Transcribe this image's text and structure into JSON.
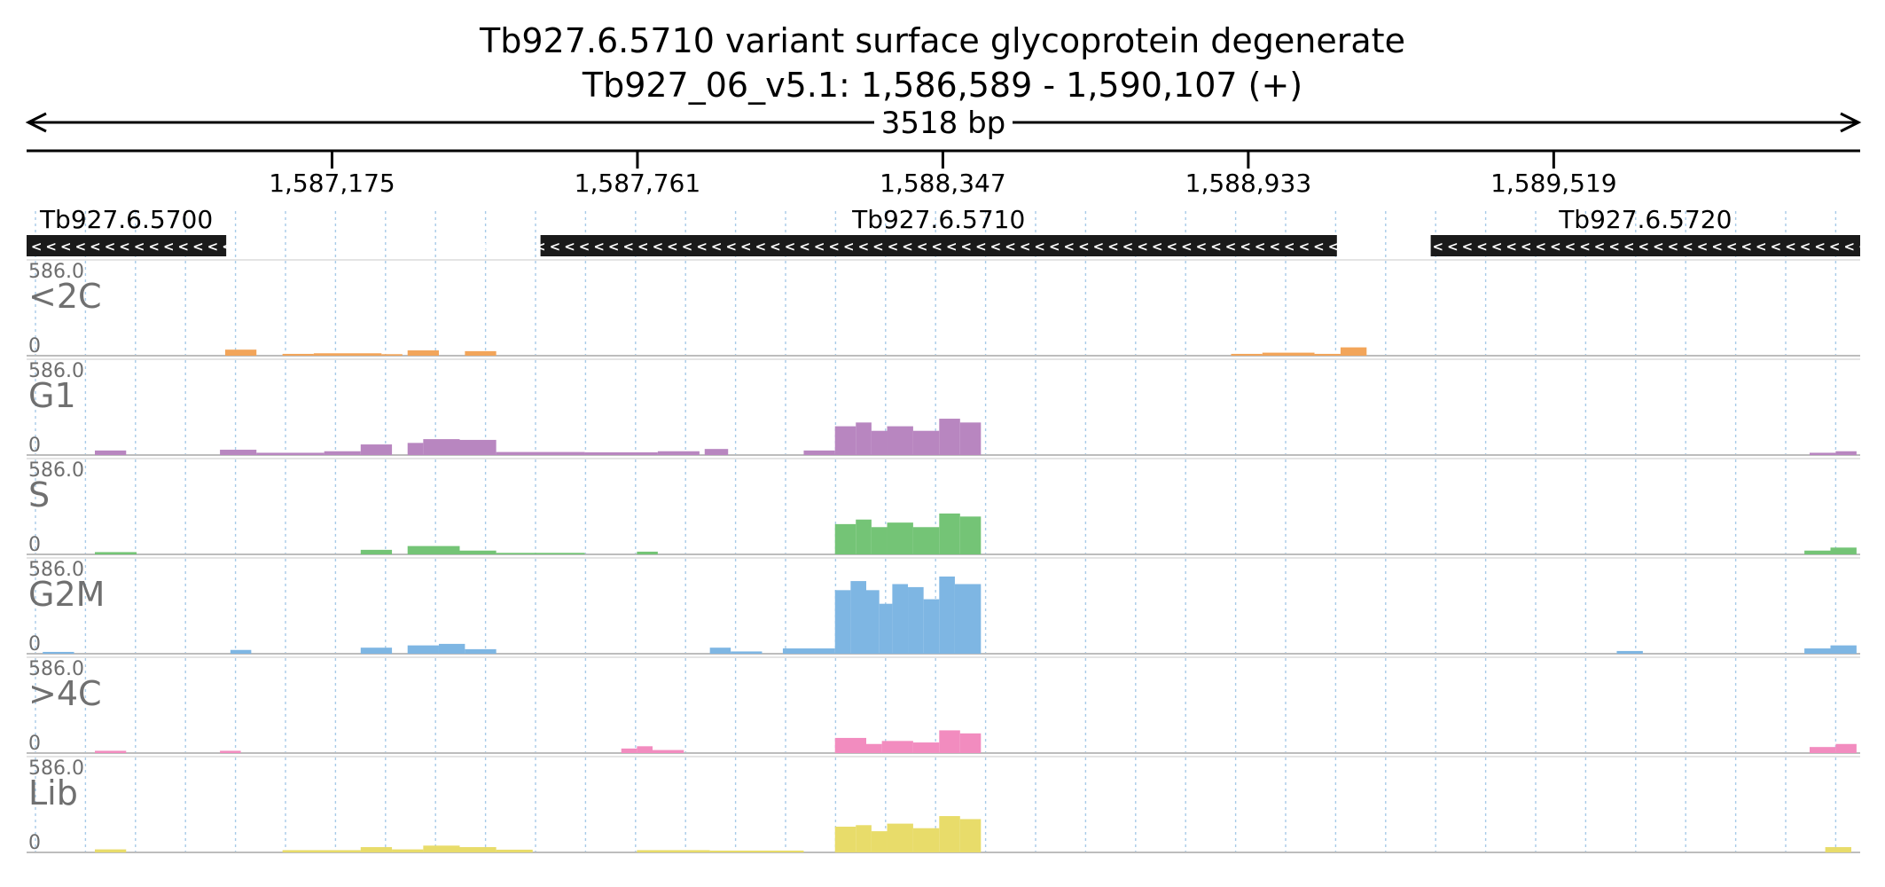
{
  "header": {
    "title_line1": "Tb927.6.5710  variant surface glycoprotein  degenerate",
    "title_line2": "Tb927_06_v5.1: 1,586,589 - 1,590,107 (+)",
    "span_label": "3518 bp"
  },
  "chart_data": {
    "type": "bar",
    "chromosome": "Tb927_06_v5.1",
    "region_start": 1586589,
    "region_end": 1590107,
    "strand": "+",
    "span_label": "3518 bp",
    "ticks": [
      {
        "pos": 1587175,
        "label": "1,587,175"
      },
      {
        "pos": 1587761,
        "label": "1,587,761"
      },
      {
        "pos": 1588347,
        "label": "1,588,347"
      },
      {
        "pos": 1588933,
        "label": "1,588,933"
      },
      {
        "pos": 1589519,
        "label": "1,589,519"
      }
    ],
    "genes": [
      {
        "name": "Tb927.6.5700",
        "start": 1586589,
        "end": 1586972,
        "strand": "-"
      },
      {
        "name": "Tb927.6.5710",
        "start": 1587575,
        "end": 1589103,
        "strand": "-"
      },
      {
        "name": "Tb927.6.5720",
        "start": 1589283,
        "end": 1590107,
        "strand": "-"
      }
    ],
    "ylim": [
      0,
      586.0
    ],
    "ymax_label": "586.0",
    "ymin_label": "0",
    "tracks": [
      {
        "name": "<2C",
        "color": "#f2a55a",
        "segments": [
          {
            "start": 1586970,
            "end": 1587030,
            "value": 40
          },
          {
            "start": 1587080,
            "end": 1587140,
            "value": 12
          },
          {
            "start": 1587140,
            "end": 1587270,
            "value": 16
          },
          {
            "start": 1587270,
            "end": 1587310,
            "value": 10
          },
          {
            "start": 1587320,
            "end": 1587380,
            "value": 35
          },
          {
            "start": 1587430,
            "end": 1587490,
            "value": 30
          },
          {
            "start": 1588900,
            "end": 1588960,
            "value": 12
          },
          {
            "start": 1588960,
            "end": 1589060,
            "value": 20
          },
          {
            "start": 1589060,
            "end": 1589110,
            "value": 12
          },
          {
            "start": 1589110,
            "end": 1589160,
            "value": 55
          }
        ]
      },
      {
        "name": "G1",
        "color": "#b886c0",
        "segments": [
          {
            "start": 1586720,
            "end": 1586780,
            "value": 30
          },
          {
            "start": 1586960,
            "end": 1587030,
            "value": 35
          },
          {
            "start": 1587030,
            "end": 1587160,
            "value": 15
          },
          {
            "start": 1587160,
            "end": 1587230,
            "value": 25
          },
          {
            "start": 1587230,
            "end": 1587290,
            "value": 70
          },
          {
            "start": 1587320,
            "end": 1587350,
            "value": 80
          },
          {
            "start": 1587350,
            "end": 1587420,
            "value": 105
          },
          {
            "start": 1587420,
            "end": 1587490,
            "value": 100
          },
          {
            "start": 1587490,
            "end": 1587660,
            "value": 20
          },
          {
            "start": 1587660,
            "end": 1587800,
            "value": 18
          },
          {
            "start": 1587800,
            "end": 1587880,
            "value": 25
          },
          {
            "start": 1587890,
            "end": 1587935,
            "value": 40
          },
          {
            "start": 1588080,
            "end": 1588140,
            "value": 30
          },
          {
            "start": 1588140,
            "end": 1588180,
            "value": 190
          },
          {
            "start": 1588180,
            "end": 1588210,
            "value": 215
          },
          {
            "start": 1588210,
            "end": 1588240,
            "value": 160
          },
          {
            "start": 1588240,
            "end": 1588290,
            "value": 190
          },
          {
            "start": 1588290,
            "end": 1588340,
            "value": 160
          },
          {
            "start": 1588340,
            "end": 1588380,
            "value": 240
          },
          {
            "start": 1588380,
            "end": 1588420,
            "value": 215
          },
          {
            "start": 1590010,
            "end": 1590060,
            "value": 15
          },
          {
            "start": 1590060,
            "end": 1590100,
            "value": 25
          }
        ]
      },
      {
        "name": "S",
        "color": "#74c476",
        "segments": [
          {
            "start": 1586720,
            "end": 1586800,
            "value": 15
          },
          {
            "start": 1587230,
            "end": 1587290,
            "value": 30
          },
          {
            "start": 1587320,
            "end": 1587420,
            "value": 55
          },
          {
            "start": 1587420,
            "end": 1587490,
            "value": 25
          },
          {
            "start": 1587490,
            "end": 1587660,
            "value": 10
          },
          {
            "start": 1587760,
            "end": 1587800,
            "value": 18
          },
          {
            "start": 1588140,
            "end": 1588180,
            "value": 200
          },
          {
            "start": 1588180,
            "end": 1588210,
            "value": 230
          },
          {
            "start": 1588210,
            "end": 1588240,
            "value": 180
          },
          {
            "start": 1588240,
            "end": 1588290,
            "value": 210
          },
          {
            "start": 1588290,
            "end": 1588340,
            "value": 180
          },
          {
            "start": 1588340,
            "end": 1588380,
            "value": 270
          },
          {
            "start": 1588380,
            "end": 1588420,
            "value": 250
          },
          {
            "start": 1590000,
            "end": 1590050,
            "value": 25
          },
          {
            "start": 1590050,
            "end": 1590100,
            "value": 45
          }
        ]
      },
      {
        "name": "G2M",
        "color": "#7eb6e3",
        "segments": [
          {
            "start": 1586620,
            "end": 1586680,
            "value": 12
          },
          {
            "start": 1586980,
            "end": 1587020,
            "value": 25
          },
          {
            "start": 1587230,
            "end": 1587290,
            "value": 40
          },
          {
            "start": 1587320,
            "end": 1587380,
            "value": 55
          },
          {
            "start": 1587380,
            "end": 1587430,
            "value": 65
          },
          {
            "start": 1587430,
            "end": 1587490,
            "value": 30
          },
          {
            "start": 1587900,
            "end": 1587940,
            "value": 40
          },
          {
            "start": 1587940,
            "end": 1588000,
            "value": 15
          },
          {
            "start": 1588040,
            "end": 1588140,
            "value": 35
          },
          {
            "start": 1588140,
            "end": 1588170,
            "value": 420
          },
          {
            "start": 1588170,
            "end": 1588200,
            "value": 480
          },
          {
            "start": 1588200,
            "end": 1588225,
            "value": 420
          },
          {
            "start": 1588225,
            "end": 1588250,
            "value": 330
          },
          {
            "start": 1588250,
            "end": 1588280,
            "value": 460
          },
          {
            "start": 1588280,
            "end": 1588310,
            "value": 440
          },
          {
            "start": 1588310,
            "end": 1588340,
            "value": 360
          },
          {
            "start": 1588340,
            "end": 1588370,
            "value": 510
          },
          {
            "start": 1588370,
            "end": 1588420,
            "value": 460
          },
          {
            "start": 1589640,
            "end": 1589690,
            "value": 18
          },
          {
            "start": 1590000,
            "end": 1590050,
            "value": 35
          },
          {
            "start": 1590050,
            "end": 1590100,
            "value": 55
          }
        ]
      },
      {
        "name": ">4C",
        "color": "#f28cbf",
        "segments": [
          {
            "start": 1586720,
            "end": 1586780,
            "value": 15
          },
          {
            "start": 1586960,
            "end": 1587000,
            "value": 15
          },
          {
            "start": 1587730,
            "end": 1587760,
            "value": 30
          },
          {
            "start": 1587760,
            "end": 1587790,
            "value": 45
          },
          {
            "start": 1587790,
            "end": 1587850,
            "value": 20
          },
          {
            "start": 1588140,
            "end": 1588200,
            "value": 100
          },
          {
            "start": 1588200,
            "end": 1588230,
            "value": 60
          },
          {
            "start": 1588230,
            "end": 1588290,
            "value": 80
          },
          {
            "start": 1588290,
            "end": 1588340,
            "value": 70
          },
          {
            "start": 1588340,
            "end": 1588380,
            "value": 150
          },
          {
            "start": 1588380,
            "end": 1588420,
            "value": 130
          },
          {
            "start": 1590010,
            "end": 1590060,
            "value": 40
          },
          {
            "start": 1590060,
            "end": 1590100,
            "value": 60
          }
        ]
      },
      {
        "name": "Lib",
        "color": "#e8dc6a",
        "segments": [
          {
            "start": 1586720,
            "end": 1586780,
            "value": 20
          },
          {
            "start": 1587080,
            "end": 1587230,
            "value": 15
          },
          {
            "start": 1587230,
            "end": 1587290,
            "value": 35
          },
          {
            "start": 1587290,
            "end": 1587350,
            "value": 20
          },
          {
            "start": 1587350,
            "end": 1587420,
            "value": 45
          },
          {
            "start": 1587420,
            "end": 1587490,
            "value": 35
          },
          {
            "start": 1587490,
            "end": 1587560,
            "value": 18
          },
          {
            "start": 1587760,
            "end": 1587900,
            "value": 15
          },
          {
            "start": 1587900,
            "end": 1588080,
            "value": 12
          },
          {
            "start": 1588140,
            "end": 1588180,
            "value": 170
          },
          {
            "start": 1588180,
            "end": 1588210,
            "value": 180
          },
          {
            "start": 1588210,
            "end": 1588240,
            "value": 140
          },
          {
            "start": 1588240,
            "end": 1588290,
            "value": 190
          },
          {
            "start": 1588290,
            "end": 1588340,
            "value": 160
          },
          {
            "start": 1588340,
            "end": 1588380,
            "value": 240
          },
          {
            "start": 1588380,
            "end": 1588420,
            "value": 220
          },
          {
            "start": 1590040,
            "end": 1590090,
            "value": 35
          }
        ]
      }
    ]
  }
}
